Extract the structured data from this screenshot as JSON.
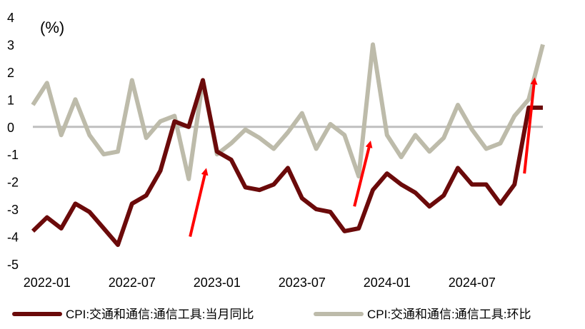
{
  "chart_data": {
    "type": "line",
    "unit_label": "(%)",
    "x": [
      "2021-12",
      "2022-01",
      "2022-02",
      "2022-03",
      "2022-04",
      "2022-05",
      "2022-06",
      "2022-07",
      "2022-08",
      "2022-09",
      "2022-10",
      "2022-11",
      "2022-12",
      "2023-01",
      "2023-02",
      "2023-03",
      "2023-04",
      "2023-05",
      "2023-06",
      "2023-07",
      "2023-08",
      "2023-09",
      "2023-10",
      "2023-11",
      "2023-12",
      "2024-01",
      "2024-02",
      "2024-03",
      "2024-04",
      "2024-05",
      "2024-06",
      "2024-07",
      "2024-08",
      "2024-09",
      "2024-10",
      "2024-11",
      "2024-12"
    ],
    "x_tick_labels": [
      "2022-01",
      "2022-07",
      "2023-01",
      "2023-07",
      "2024-01",
      "2024-07"
    ],
    "y_ticks": [
      4,
      3,
      2,
      1,
      0,
      -1,
      -2,
      -3,
      -4,
      -5
    ],
    "ylim": [
      -5,
      4
    ],
    "zero_line": true,
    "legend_position": "bottom",
    "series": [
      {
        "name": "CPI:交通和通信:通信工具:当月同比",
        "color": "#6B0A0A",
        "values": [
          -3.8,
          -3.3,
          -3.7,
          -2.8,
          -3.1,
          -3.7,
          -4.3,
          -2.8,
          -2.5,
          -1.6,
          0.2,
          0.0,
          1.7,
          -0.9,
          -1.2,
          -2.2,
          -2.3,
          -2.1,
          -1.5,
          -2.6,
          -3.0,
          -3.1,
          -3.8,
          -3.7,
          -2.3,
          -1.7,
          -2.1,
          -2.4,
          -2.9,
          -2.5,
          -1.5,
          -2.1,
          -2.1,
          -2.8,
          -2.1,
          0.7,
          0.7
        ]
      },
      {
        "name": "CPI:交通和通信:通信工具:环比",
        "color": "#BDBBAA",
        "values": [
          0.8,
          1.6,
          -0.3,
          1.0,
          -0.3,
          -1.0,
          -0.9,
          1.7,
          -0.4,
          0.2,
          0.4,
          -1.9,
          1.7,
          -1.0,
          -0.6,
          -0.1,
          -0.4,
          -0.8,
          -0.2,
          0.5,
          -0.8,
          0.1,
          -0.3,
          -1.8,
          3.0,
          -0.3,
          -1.1,
          -0.3,
          -0.9,
          -0.4,
          0.8,
          -0.1,
          -0.8,
          -0.6,
          0.4,
          1.0,
          3.0
        ]
      }
    ],
    "annotations": [
      {
        "type": "arrow",
        "color": "#FF0000",
        "from_x": "2022-11",
        "from_y": -4.0,
        "to_x": "2022-12",
        "to_y": -1.6
      },
      {
        "type": "arrow",
        "color": "#FF0000",
        "from_x": "2023-11",
        "from_y": -2.9,
        "to_x": "2023-12",
        "to_y": -0.6
      },
      {
        "type": "arrow",
        "color": "#FF0000",
        "from_x": "2024-11",
        "from_y": -1.7,
        "to_x": "2024-11",
        "to_y": 1.7
      }
    ]
  }
}
